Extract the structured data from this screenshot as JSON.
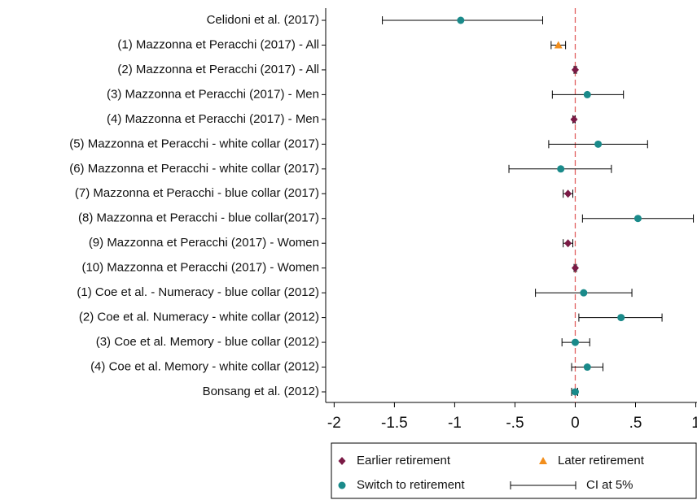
{
  "chart_data": {
    "type": "forest",
    "categories": [
      "Celidoni et al. (2017)",
      "(1) Mazzonna et Peracchi (2017) - All",
      "(2) Mazzonna et Peracchi (2017) - All",
      "(3) Mazzonna et Peracchi (2017) - Men",
      "(4) Mazzonna et Peracchi (2017) - Men",
      "(5) Mazzonna et Peracchi - white collar (2017)",
      "(6) Mazzonna et Peracchi - white collar (2017)",
      "(7) Mazzonna et Peracchi - blue collar (2017)",
      "(8) Mazzonna et Peracchi - blue collar(2017)",
      "(9) Mazzonna et Peracchi (2017) - Women",
      "(10) Mazzonna et Peracchi (2017) - Women",
      "(1) Coe et al. - Numeracy - blue collar (2012)",
      "(2) Coe et al. Numeracy - white collar (2012)",
      "(3) Coe et al. Memory - blue collar (2012)",
      "(4) Coe et al. Memory - white collar (2012)",
      "Bonsang et al. (2012)"
    ],
    "series": [
      {
        "name": "Earlier retirement",
        "color": "#7a1a45",
        "marker": "diamond",
        "values": [
          null,
          null,
          0.0,
          null,
          -0.01,
          null,
          null,
          -0.06,
          null,
          -0.06,
          0.0,
          null,
          null,
          null,
          null,
          null
        ]
      },
      {
        "name": "Later retirement",
        "color": "#f28e1c",
        "marker": "triangle",
        "values": [
          null,
          -0.14,
          null,
          null,
          null,
          null,
          null,
          null,
          null,
          null,
          null,
          null,
          null,
          null,
          null,
          null
        ]
      },
      {
        "name": "Switch to retirement",
        "color": "#1a8a8a",
        "marker": "circle",
        "values": [
          -0.95,
          null,
          null,
          0.1,
          null,
          0.19,
          -0.12,
          null,
          0.52,
          null,
          null,
          0.07,
          0.38,
          0.0,
          0.1,
          0.0
        ]
      }
    ],
    "ci": {
      "name": "CI at 5%",
      "lower": [
        -1.6,
        -0.2,
        -0.01,
        -0.19,
        -0.02,
        -0.22,
        -0.55,
        -0.1,
        0.06,
        -0.1,
        -0.01,
        -0.33,
        0.03,
        -0.11,
        -0.03,
        -0.03
      ],
      "upper": [
        -0.27,
        -0.08,
        0.01,
        0.4,
        0.0,
        0.6,
        0.3,
        -0.02,
        0.98,
        -0.02,
        0.01,
        0.47,
        0.72,
        0.12,
        0.23,
        0.02
      ]
    },
    "reference_line": 0,
    "xlim": [
      -2.07,
      1.01
    ],
    "xticks": [
      -2,
      -1.5,
      -1,
      {
        "value": -0.5,
        "label": "-.5"
      },
      0,
      {
        "value": 0.5,
        "label": ".5"
      },
      1
    ]
  }
}
